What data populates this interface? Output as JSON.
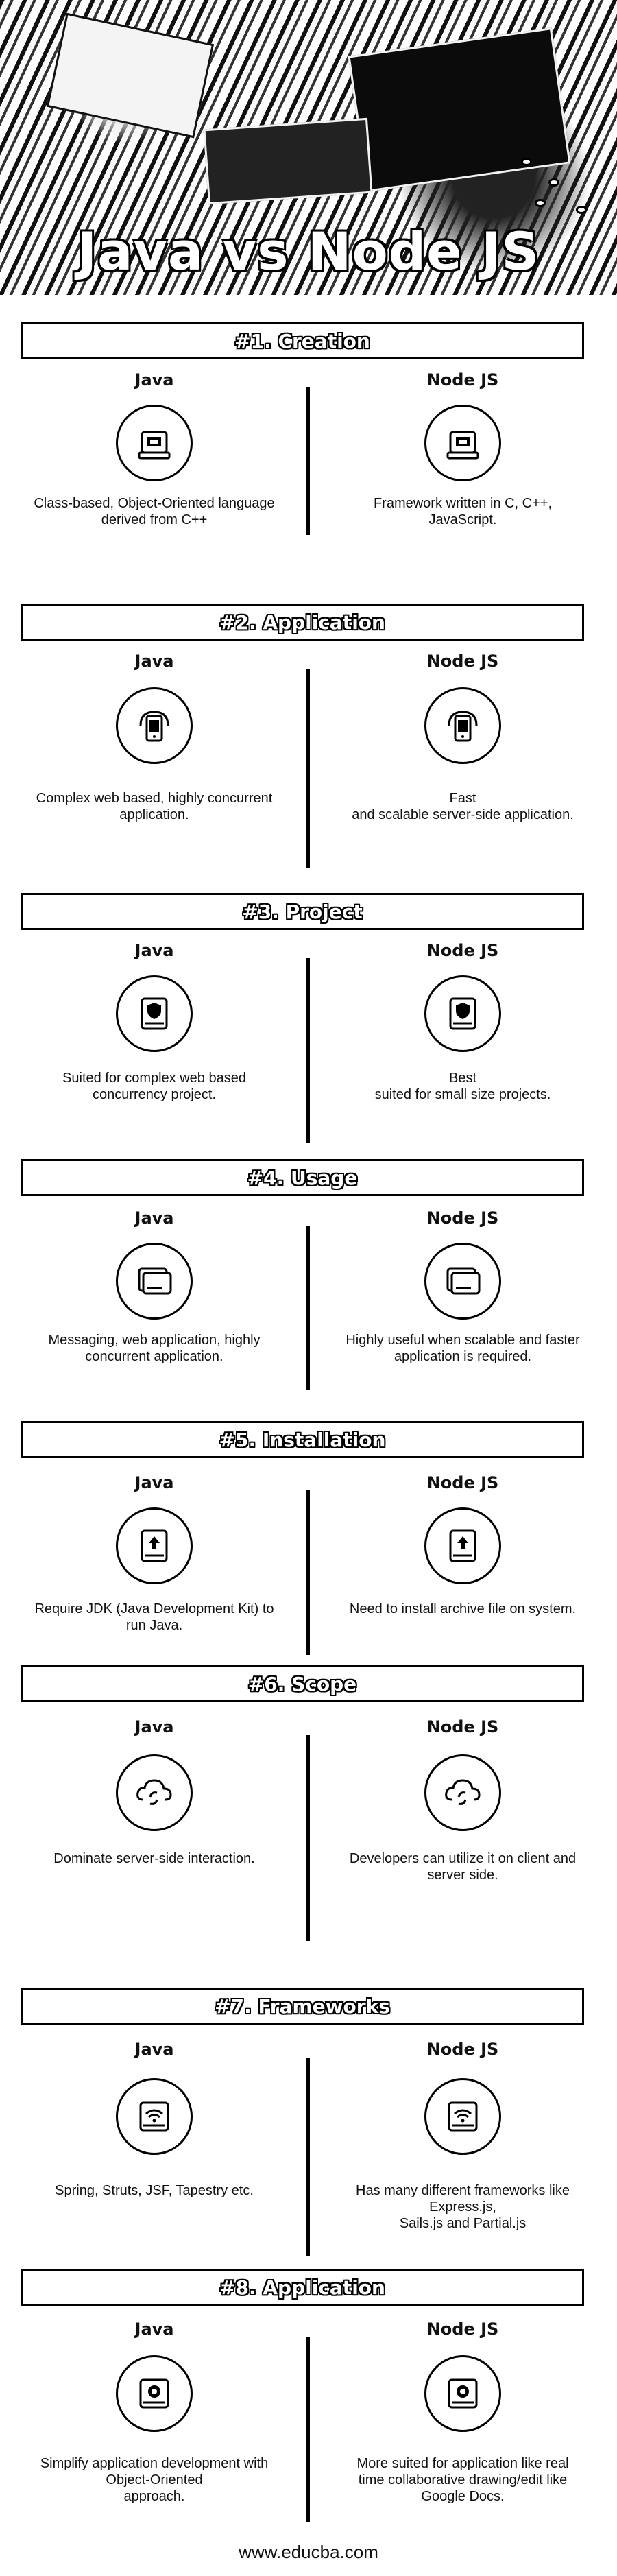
{
  "hero": {
    "title": "Java vs Node JS"
  },
  "columns": {
    "left": "Java",
    "right": "Node JS"
  },
  "sections": [
    {
      "title": "#1. Creation",
      "left_icon": "computer-icon",
      "right_icon": "computer-icon",
      "left_text": "Class-based, Object-Oriented language\nderived from C++",
      "right_text": "Framework written in C, C++,\nJavaScript."
    },
    {
      "title": "#2. Application",
      "left_icon": "mobile-icon",
      "right_icon": "mobile-icon",
      "left_text": "Complex web based, highly concurrent\napplication.",
      "right_text": "Fast\nand scalable server-side application."
    },
    {
      "title": "#3. Project",
      "left_icon": "shield-drive-icon",
      "right_icon": "shield-drive-icon",
      "left_text": "Suited for complex web based\nconcurrency project.",
      "right_text": "Best\nsuited for small size projects."
    },
    {
      "title": "#4. Usage",
      "left_icon": "hard-drive-icon",
      "right_icon": "hard-drive-icon",
      "left_text": "Messaging, web application, highly\nconcurrent application.",
      "right_text": "Highly useful when scalable and faster\napplication is required."
    },
    {
      "title": "#5. Installation",
      "left_icon": "upload-drive-icon",
      "right_icon": "upload-drive-icon",
      "left_text": "Require JDK (Java Development Kit) to\nrun Java.",
      "right_text": "Need to install archive file on system."
    },
    {
      "title": "#6. Scope",
      "left_icon": "cloud-sync-icon",
      "right_icon": "cloud-sync-icon",
      "left_text": "Dominate server-side interaction.",
      "right_text": "Developers can utilize it on client and\nserver side."
    },
    {
      "title": "#7. Frameworks",
      "left_icon": "wifi-drive-icon",
      "right_icon": "wifi-drive-icon",
      "left_text": "Spring, Struts, JSF, Tapestry etc.",
      "right_text": "Has many different frameworks like\nExpress.js,\nSails.js and Partial.js"
    },
    {
      "title": "#8. Application",
      "left_icon": "gear-drive-icon",
      "right_icon": "gear-drive-icon",
      "left_text": "Simplify application development with\nObject-Oriented\napproach.",
      "right_text": "More suited for application like real\ntime collaborative drawing/edit like\nGoogle Docs."
    }
  ],
  "footer": {
    "text": "www.educba.com"
  }
}
